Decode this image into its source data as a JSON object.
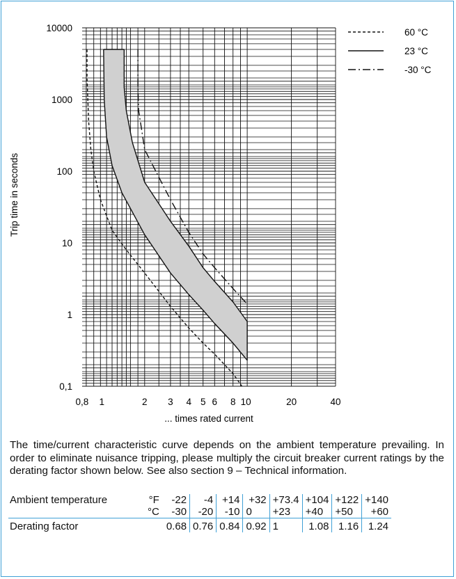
{
  "chart_data": {
    "type": "line",
    "xlabel": "... times rated current",
    "ylabel": "Trip time in seconds",
    "xscale": "log",
    "yscale": "log",
    "xlim": [
      0.75,
      40
    ],
    "ylim": [
      0.1,
      10000
    ],
    "grid": true,
    "legend_position": "top-right",
    "x_ticks": [
      0.8,
      1,
      2,
      3,
      4,
      5,
      6,
      8,
      10,
      20,
      40
    ],
    "x_tick_labels": [
      "0,8",
      "1",
      "2",
      "3",
      "4",
      "5",
      "6",
      "8",
      "10",
      "20",
      "40"
    ],
    "y_ticks": [
      0.1,
      1,
      10,
      100,
      1000,
      10000
    ],
    "y_tick_labels": [
      "0,1",
      "1",
      "10",
      "100",
      "1000",
      "10000"
    ],
    "series": [
      {
        "name": "60 °C",
        "style": "dashed",
        "x": [
          0.81,
          0.81,
          0.83,
          0.86,
          0.9,
          1.0,
          1.2,
          1.5,
          2.0,
          3.0,
          4.0,
          5.0,
          6.0,
          8.0,
          9.2
        ],
        "y": [
          5000,
          2000,
          500,
          200,
          100,
          40,
          15,
          8,
          3.8,
          1.3,
          0.65,
          0.4,
          0.28,
          0.15,
          0.1
        ]
      },
      {
        "name": "23 °C",
        "style": "solid",
        "x": [
          1.05,
          1.06,
          1.1,
          1.2,
          1.4,
          2.0,
          3.0,
          4.0,
          5.0,
          6.0,
          8.0,
          10.0
        ],
        "y": [
          5000,
          1000,
          300,
          120,
          50,
          13,
          3.8,
          1.9,
          1.15,
          0.75,
          0.4,
          0.23
        ]
      },
      {
        "name": "23 °C",
        "style": "solid",
        "x": [
          1.45,
          1.45,
          1.5,
          1.65,
          2.0,
          3.0,
          4.0,
          5.0,
          6.0,
          8.0,
          10.0
        ],
        "y": [
          5000,
          1500,
          700,
          250,
          70,
          20,
          9,
          4.5,
          2.9,
          1.5,
          0.8
        ]
      },
      {
        "name": "-30 °C",
        "style": "dashdot",
        "x": [
          1.8,
          1.8,
          1.82,
          1.9,
          2.0,
          3.0,
          4.0,
          5.0,
          6.0,
          8.0,
          10.0
        ],
        "y": [
          5000,
          1500,
          700,
          400,
          200,
          40,
          14,
          7,
          4.5,
          2.3,
          1.4
        ]
      }
    ]
  },
  "description": "The time/current characteristic curve depends on the ambient temperature prevailing. In order to eliminate nuisance tripping, please multiply the circuit breaker current ratings by the derating factor shown below. See also section 9 – Technical information.",
  "derating_table": {
    "ambient_label": "Ambient temperature",
    "unit_f": "°F",
    "unit_c": "°C",
    "fahrenheit": [
      "-22",
      "-4",
      "+14",
      "+32",
      "+73.4",
      "+104",
      "+122",
      "+140"
    ],
    "celsius": [
      "-30",
      "-20",
      "-10",
      "0",
      "+23",
      "+40",
      "+50",
      "+60"
    ],
    "factor_label": "Derating factor",
    "factors": [
      "0.68",
      "0.76",
      "0.84",
      "0.92",
      "1",
      "1.08",
      "1.16",
      "1.24"
    ]
  },
  "colors": {
    "frame": "#3fa0d6",
    "band": "#d0d0d0",
    "grid": "#111111"
  }
}
